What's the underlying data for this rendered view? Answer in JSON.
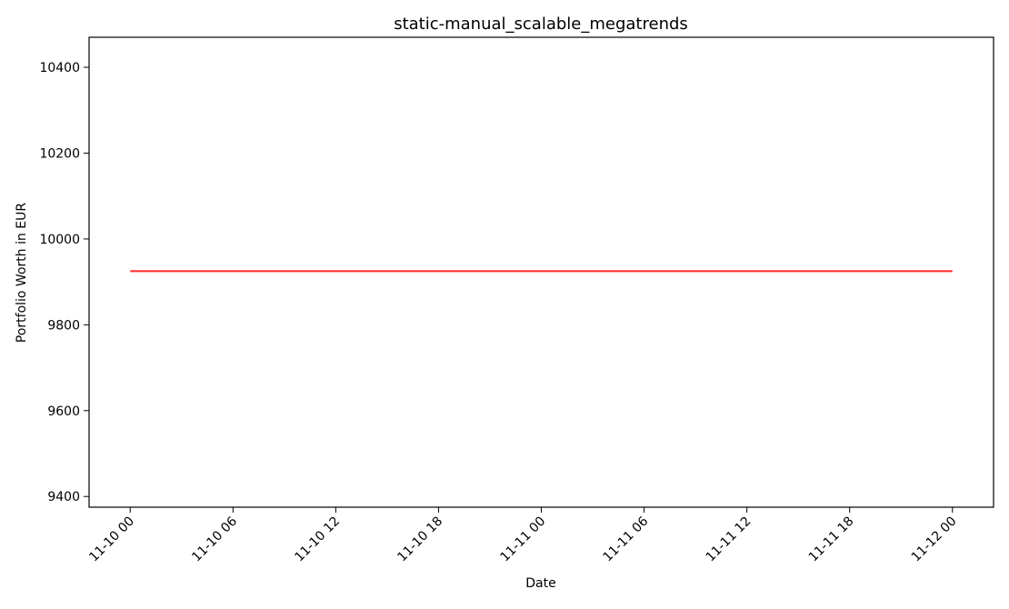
{
  "chart_data": {
    "type": "line",
    "title": "static-manual_scalable_megatrends",
    "xlabel": "Date",
    "ylabel": "Portfolio Worth in EUR",
    "x_tick_labels": [
      "11-10 00",
      "11-10 06",
      "11-10 12",
      "11-10 18",
      "11-11 00",
      "11-11 06",
      "11-11 12",
      "11-11 18",
      "11-12 00"
    ],
    "x_tick_values_hours": [
      0,
      6,
      12,
      18,
      24,
      30,
      36,
      42,
      48
    ],
    "xlim_hours": [
      -2.4,
      50.4
    ],
    "y_ticks": [
      9400,
      9600,
      9800,
      10000,
      10200,
      10400
    ],
    "ylim": [
      9375,
      10470
    ],
    "grid": false,
    "legend": "none",
    "series": [
      {
        "color": "#ff3333",
        "x_hours": [
          0,
          48
        ],
        "x": [
          "11-10 00",
          "11-12 00"
        ],
        "values": [
          9925,
          9925
        ]
      }
    ]
  }
}
